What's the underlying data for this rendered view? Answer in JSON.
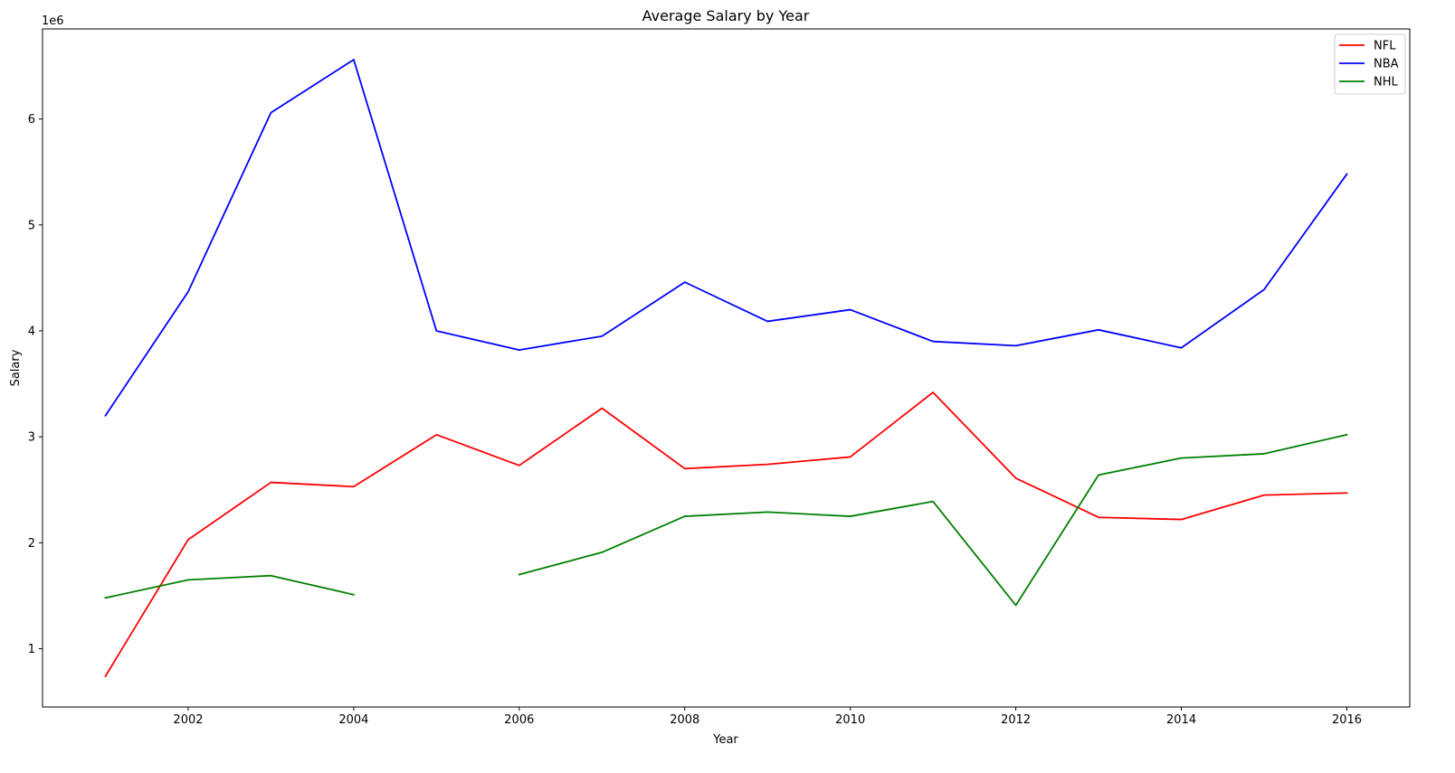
{
  "chart_data": {
    "type": "line",
    "title": "Average Salary by Year",
    "xlabel": "Year",
    "ylabel": "Salary",
    "y_offset_text": "1e6",
    "x": [
      2001,
      2002,
      2003,
      2004,
      2005,
      2006,
      2007,
      2008,
      2009,
      2010,
      2011,
      2012,
      2013,
      2014,
      2015,
      2016
    ],
    "xlim": [
      2000.24,
      2016.76
    ],
    "ylim": [
      450000,
      6850000
    ],
    "xticks": [
      2002,
      2004,
      2006,
      2008,
      2010,
      2012,
      2014,
      2016
    ],
    "xtick_labels": [
      "2002",
      "2004",
      "2006",
      "2008",
      "2010",
      "2012",
      "2014",
      "2016"
    ],
    "yticks": [
      1000000,
      2000000,
      3000000,
      4000000,
      5000000,
      6000000
    ],
    "ytick_labels": [
      "1",
      "2",
      "3",
      "4",
      "5",
      "6"
    ],
    "grid": false,
    "legend_position": "top-right",
    "series": [
      {
        "name": "NFL",
        "color": "#ff0000",
        "values": [
          740000,
          2030000,
          2570000,
          2530000,
          3020000,
          2730000,
          3270000,
          2700000,
          2740000,
          2810000,
          3420000,
          2610000,
          2240000,
          2220000,
          2450000,
          2470000
        ]
      },
      {
        "name": "NBA",
        "color": "#0000ff",
        "values": [
          3200000,
          4370000,
          6060000,
          6560000,
          4000000,
          3820000,
          3950000,
          4460000,
          4090000,
          4200000,
          3900000,
          3860000,
          4010000,
          3840000,
          4390000,
          5480000
        ]
      },
      {
        "name": "NHL",
        "color": "#008000",
        "values": [
          1480000,
          1650000,
          1690000,
          1510000,
          null,
          1700000,
          1910000,
          2250000,
          2290000,
          2250000,
          2390000,
          1410000,
          2640000,
          2800000,
          2840000,
          3020000
        ]
      }
    ]
  }
}
